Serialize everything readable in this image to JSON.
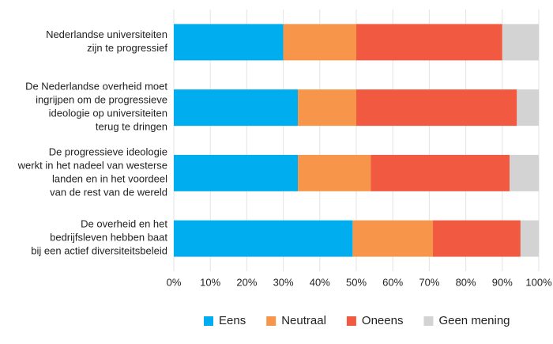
{
  "chart_data": {
    "type": "stacked-bar-horizontal",
    "categories": [
      "Nederlandse universiteiten\nzijn te progressief",
      "De Nederlandse overheid moet\ningrijpen om de progressieve\nideologie op universiteiten\nterug te dringen",
      "De progressieve ideologie\nwerkt in het nadeel van westerse\nlanden en in het voordeel\nvan de rest van de wereld",
      "De overheid en het\nbedrijfsleven hebben baat\nbij een actief diversiteitsbeleid"
    ],
    "series": [
      {
        "name": "Eens",
        "color": "#00aeef",
        "values": [
          30,
          34,
          34,
          49
        ]
      },
      {
        "name": "Neutraal",
        "color": "#f7964a",
        "values": [
          20,
          16,
          20,
          22
        ]
      },
      {
        "name": "Oneens",
        "color": "#f15a40",
        "values": [
          40,
          44,
          38,
          24
        ]
      },
      {
        "name": "Geen mening",
        "color": "#d3d3d3",
        "values": [
          10,
          6,
          8,
          5
        ]
      }
    ],
    "xlim": [
      0,
      100
    ],
    "xticks": [
      {
        "value": 0,
        "label": "0%"
      },
      {
        "value": 10,
        "label": "10%"
      },
      {
        "value": 20,
        "label": "20%"
      },
      {
        "value": 30,
        "label": "30%"
      },
      {
        "value": 40,
        "label": "40%"
      },
      {
        "value": 50,
        "label": "50%"
      },
      {
        "value": 60,
        "label": "60%"
      },
      {
        "value": 70,
        "label": "70%"
      },
      {
        "value": 80,
        "label": "80%"
      },
      {
        "value": 90,
        "label": "90%"
      },
      {
        "value": 100,
        "label": "100%"
      }
    ],
    "grid": true,
    "legend": "bottom"
  }
}
